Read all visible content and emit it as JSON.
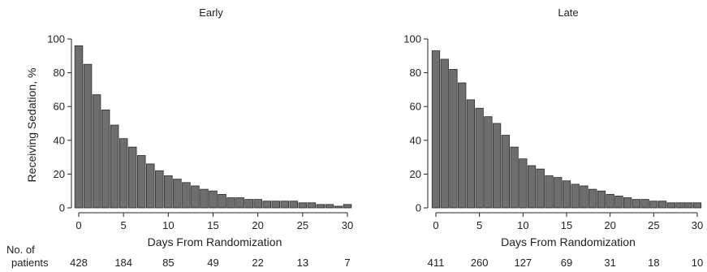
{
  "chart_data": [
    {
      "type": "bar",
      "title": "Early",
      "xlabel": "Days From Randomization",
      "ylabel": "Receiving Sedation, %",
      "xlim": [
        0,
        30
      ],
      "ylim": [
        0,
        100
      ],
      "x_ticks": [
        0,
        5,
        10,
        15,
        20,
        25,
        30
      ],
      "y_ticks": [
        0,
        20,
        40,
        60,
        80,
        100
      ],
      "x": [
        0,
        1,
        2,
        3,
        4,
        5,
        6,
        7,
        8,
        9,
        10,
        11,
        12,
        13,
        14,
        15,
        16,
        17,
        18,
        19,
        20,
        21,
        22,
        23,
        24,
        25,
        26,
        27,
        28,
        29,
        30
      ],
      "values": [
        96,
        85,
        67,
        58,
        49,
        41,
        36,
        31,
        26,
        22,
        19,
        17,
        15,
        13,
        11,
        10,
        8,
        6,
        6,
        5,
        5,
        4,
        4,
        4,
        4,
        3,
        3,
        2,
        2,
        1,
        2
      ],
      "patients_at": [
        0,
        5,
        10,
        15,
        20,
        25,
        30
      ],
      "patients": [
        "428",
        "184",
        "85",
        "49",
        "22",
        "13",
        "7"
      ]
    },
    {
      "type": "bar",
      "title": "Late",
      "xlabel": "Days From Randomization",
      "ylabel": "",
      "xlim": [
        0,
        30
      ],
      "ylim": [
        0,
        100
      ],
      "x_ticks": [
        0,
        5,
        10,
        15,
        20,
        25,
        30
      ],
      "y_ticks": [
        0,
        20,
        40,
        60,
        80,
        100
      ],
      "x": [
        0,
        1,
        2,
        3,
        4,
        5,
        6,
        7,
        8,
        9,
        10,
        11,
        12,
        13,
        14,
        15,
        16,
        17,
        18,
        19,
        20,
        21,
        22,
        23,
        24,
        25,
        26,
        27,
        28,
        29,
        30
      ],
      "values": [
        93,
        88,
        82,
        74,
        64,
        59,
        54,
        50,
        43,
        36,
        29,
        25,
        23,
        19,
        18,
        16,
        14,
        13,
        11,
        10,
        8,
        7,
        6,
        5,
        5,
        4,
        4,
        3,
        3,
        3,
        3
      ],
      "patients_at": [
        0,
        5,
        10,
        15,
        20,
        25,
        30
      ],
      "patients": [
        "411",
        "260",
        "127",
        "69",
        "31",
        "18",
        "10"
      ]
    }
  ],
  "patients_row_label": [
    "No. of",
    "patients"
  ]
}
